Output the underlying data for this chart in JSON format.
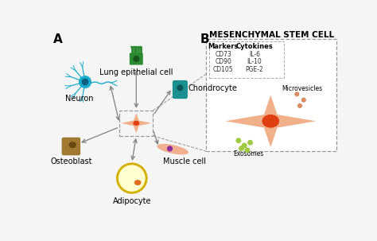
{
  "title_A": "A",
  "title_B": "B",
  "bg_color": "#f5f5f5",
  "panel_B_title": "MESENCHYMAL STEM CELL",
  "markers_header": "Markers",
  "cytokines_header": "Cytokines",
  "markers": [
    "CD73",
    "CD90",
    "CD105"
  ],
  "cytokines": [
    "IL-6",
    "IL-10",
    "PGE-2"
  ],
  "labels": {
    "neuron": "Neuron",
    "lung": "Lung epithelial cell",
    "chondrocyte": "Chondrocyte",
    "osteoblast": "Osteoblast",
    "adipocyte": "Adipocyte",
    "muscle": "Muscle cell"
  },
  "microvesicles_label": "Microvesicles",
  "exosomes_label": "Exosomes",
  "neuron_color": "#1aaccc",
  "lung_color": "#2a8a30",
  "chondrocyte_color": "#1a9090",
  "osteoblast_color": "#a07830",
  "adipocyte_color": "#f8e020",
  "adipocyte_edge": "#d4b000",
  "muscle_color": "#f0b090",
  "stem_cell_color": "#f0b08a",
  "stem_cell_nucleus_color": "#e04010",
  "microvesicle_color": "#e09060",
  "exosome_color": "#a0c840",
  "arrow_color": "#808080",
  "label_fontsize": 7,
  "panel_label_fontsize": 11
}
